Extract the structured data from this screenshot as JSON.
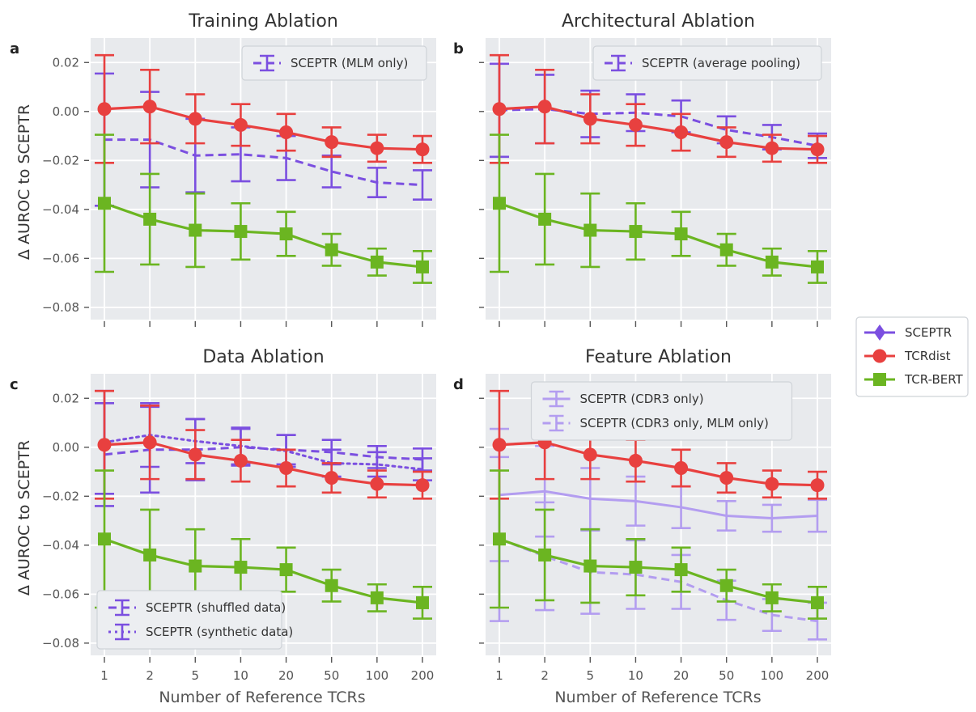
{
  "figure": {
    "ylabel": "Δ AUROC to SCEPTR",
    "xlabel": "Number of Reference TCRs",
    "colors": {
      "sceptr": "#7b4fe0",
      "sceptr_light": "#b39df0",
      "tcrdist": "#e8403f",
      "tcrbert": "#6bb521",
      "panel_bg": "#e8eaed",
      "grid": "#ffffff"
    },
    "shared_legend": [
      {
        "name": "SCEPTR",
        "marker": "diamond",
        "color": "#7b4fe0"
      },
      {
        "name": "TCRdist",
        "marker": "circle",
        "color": "#e8403f"
      },
      {
        "name": "TCR-BERT",
        "marker": "square",
        "color": "#6bb521"
      }
    ]
  },
  "chart_data": [
    {
      "panel": "a",
      "type": "line",
      "title": "Training Ablation",
      "x": [
        1,
        2,
        5,
        10,
        20,
        50,
        100,
        200
      ],
      "xticklabels": [
        "1",
        "2",
        "5",
        "10",
        "20",
        "50",
        "100",
        "200"
      ],
      "ylim": [
        -0.085,
        0.03
      ],
      "yticks": [
        "0.02",
        "0.00",
        "−0.02",
        "−0.04",
        "−0.06",
        "−0.08"
      ],
      "yticks_values": [
        0.02,
        0.0,
        -0.02,
        -0.04,
        -0.06,
        -0.08
      ],
      "legend_position": "top-right",
      "grid": true,
      "series": [
        {
          "name": "TCRdist",
          "style": "solid",
          "marker": "circle",
          "color": "#e8403f",
          "values": [
            0.001,
            0.002,
            -0.003,
            -0.0055,
            -0.0085,
            -0.0125,
            -0.015,
            -0.0155
          ],
          "errors": [
            0.022,
            0.015,
            0.01,
            0.0085,
            0.0075,
            0.006,
            0.0055,
            0.0055
          ]
        },
        {
          "name": "TCR-BERT",
          "style": "solid",
          "marker": "square",
          "color": "#6bb521",
          "values": [
            -0.0375,
            -0.044,
            -0.0485,
            -0.049,
            -0.05,
            -0.0565,
            -0.0615,
            -0.0635
          ],
          "errors": [
            0.028,
            0.0185,
            0.015,
            0.0115,
            0.009,
            0.0065,
            0.0055,
            0.0065
          ]
        },
        {
          "name": "SCEPTR (MLM only)",
          "style": "dashed",
          "marker": "none",
          "color": "#7b4fe0",
          "values": [
            -0.0115,
            -0.0115,
            -0.018,
            -0.0175,
            -0.019,
            -0.0245,
            -0.029,
            -0.03
          ],
          "errors": [
            0.027,
            0.0195,
            0.015,
            0.011,
            0.009,
            0.0065,
            0.006,
            0.006
          ]
        }
      ]
    },
    {
      "panel": "b",
      "type": "line",
      "title": "Architectural Ablation",
      "x": [
        1,
        2,
        5,
        10,
        20,
        50,
        100,
        200
      ],
      "xticklabels": [
        "1",
        "2",
        "5",
        "10",
        "20",
        "50",
        "100",
        "200"
      ],
      "ylim": [
        -0.085,
        0.03
      ],
      "yticks_values": [
        0.02,
        0.0,
        -0.02,
        -0.04,
        -0.06,
        -0.08
      ],
      "legend_position": "top-right",
      "grid": true,
      "series": [
        {
          "name": "TCRdist",
          "style": "solid",
          "marker": "circle",
          "color": "#e8403f",
          "values": [
            0.001,
            0.002,
            -0.003,
            -0.0055,
            -0.0085,
            -0.0125,
            -0.015,
            -0.0155
          ],
          "errors": [
            0.022,
            0.015,
            0.01,
            0.0085,
            0.0075,
            0.006,
            0.0055,
            0.0055
          ]
        },
        {
          "name": "TCR-BERT",
          "style": "solid",
          "marker": "square",
          "color": "#6bb521",
          "values": [
            -0.0375,
            -0.044,
            -0.0485,
            -0.049,
            -0.05,
            -0.0565,
            -0.0615,
            -0.0635
          ],
          "errors": [
            0.028,
            0.0185,
            0.015,
            0.0115,
            0.009,
            0.0065,
            0.0055,
            0.0065
          ]
        },
        {
          "name": "SCEPTR (average pooling)",
          "style": "dashed",
          "marker": "none",
          "color": "#7b4fe0",
          "values": [
            0.0005,
            0.001,
            -0.001,
            -0.0005,
            -0.002,
            -0.0075,
            -0.0105,
            -0.014
          ],
          "errors": [
            0.019,
            0.014,
            0.0095,
            0.0075,
            0.0065,
            0.0055,
            0.005,
            0.005
          ]
        }
      ]
    },
    {
      "panel": "c",
      "type": "line",
      "title": "Data Ablation",
      "x": [
        1,
        2,
        5,
        10,
        20,
        50,
        100,
        200
      ],
      "xticklabels": [
        "1",
        "2",
        "5",
        "10",
        "20",
        "50",
        "100",
        "200"
      ],
      "ylim": [
        -0.085,
        0.03
      ],
      "yticks": [
        "0.02",
        "0.00",
        "−0.02",
        "−0.04",
        "−0.06",
        "−0.08"
      ],
      "yticks_values": [
        0.02,
        0.0,
        -0.02,
        -0.04,
        -0.06,
        -0.08
      ],
      "legend_position": "bottom-left",
      "grid": true,
      "series": [
        {
          "name": "TCRdist",
          "style": "solid",
          "marker": "circle",
          "color": "#e8403f",
          "values": [
            0.001,
            0.002,
            -0.003,
            -0.0055,
            -0.0085,
            -0.0125,
            -0.015,
            -0.0155
          ],
          "errors": [
            0.022,
            0.015,
            0.01,
            0.0085,
            0.0075,
            0.006,
            0.0055,
            0.0055
          ]
        },
        {
          "name": "TCR-BERT",
          "style": "solid",
          "marker": "square",
          "color": "#6bb521",
          "values": [
            -0.0375,
            -0.044,
            -0.0485,
            -0.049,
            -0.05,
            -0.0565,
            -0.0615,
            -0.0635
          ],
          "errors": [
            0.028,
            0.0185,
            0.015,
            0.0115,
            0.009,
            0.0065,
            0.0055,
            0.0065
          ]
        },
        {
          "name": "SCEPTR (shuffled data)",
          "style": "dashed",
          "marker": "none",
          "color": "#7b4fe0",
          "values": [
            -0.003,
            -0.001,
            -0.001,
            0.0,
            -0.001,
            -0.002,
            -0.004,
            -0.005
          ],
          "errors": [
            0.021,
            0.0175,
            0.0125,
            0.0075,
            0.006,
            0.005,
            0.0045,
            0.0045
          ]
        },
        {
          "name": "SCEPTR (synthetic data)",
          "style": "dotted",
          "marker": "none",
          "color": "#7b4fe0",
          "values": [
            0.002,
            0.005,
            0.0025,
            0.0005,
            -0.0015,
            -0.0065,
            -0.007,
            -0.009
          ],
          "errors": [
            0.021,
            0.013,
            0.009,
            0.0075,
            0.0065,
            0.0055,
            0.005,
            0.0045
          ]
        }
      ]
    },
    {
      "panel": "d",
      "type": "line",
      "title": "Feature Ablation",
      "x": [
        1,
        2,
        5,
        10,
        20,
        50,
        100,
        200
      ],
      "xticklabels": [
        "1",
        "2",
        "5",
        "10",
        "20",
        "50",
        "100",
        "200"
      ],
      "ylim": [
        -0.085,
        0.03
      ],
      "yticks_values": [
        0.02,
        0.0,
        -0.02,
        -0.04,
        -0.06,
        -0.08
      ],
      "legend_position": "top-center",
      "grid": true,
      "series": [
        {
          "name": "TCRdist",
          "style": "solid",
          "marker": "circle",
          "color": "#e8403f",
          "values": [
            0.001,
            0.002,
            -0.003,
            -0.0055,
            -0.0085,
            -0.0125,
            -0.015,
            -0.0155
          ],
          "errors": [
            0.022,
            0.015,
            0.01,
            0.0085,
            0.0075,
            0.006,
            0.0055,
            0.0055
          ]
        },
        {
          "name": "TCR-BERT",
          "style": "solid",
          "marker": "square",
          "color": "#6bb521",
          "values": [
            -0.0375,
            -0.044,
            -0.0485,
            -0.049,
            -0.05,
            -0.0565,
            -0.0615,
            -0.0635
          ],
          "errors": [
            0.028,
            0.0185,
            0.015,
            0.0115,
            0.009,
            0.0065,
            0.0055,
            0.0065
          ]
        },
        {
          "name": "SCEPTR (CDR3 only)",
          "style": "solid",
          "marker": "none",
          "color": "#b39df0",
          "values": [
            -0.0195,
            -0.018,
            -0.021,
            -0.022,
            -0.0245,
            -0.028,
            -0.029,
            -0.028
          ],
          "errors": [
            0.027,
            0.0185,
            0.0125,
            0.01,
            0.0085,
            0.006,
            0.0055,
            0.0065
          ]
        },
        {
          "name": "SCEPTR (CDR3 only, MLM only)",
          "style": "dashed",
          "marker": "none",
          "color": "#b39df0",
          "values": [
            -0.0375,
            -0.0445,
            -0.051,
            -0.052,
            -0.055,
            -0.0625,
            -0.0685,
            -0.071
          ],
          "errors": [
            0.0335,
            0.022,
            0.017,
            0.014,
            0.011,
            0.008,
            0.0065,
            0.0075
          ]
        }
      ]
    }
  ]
}
